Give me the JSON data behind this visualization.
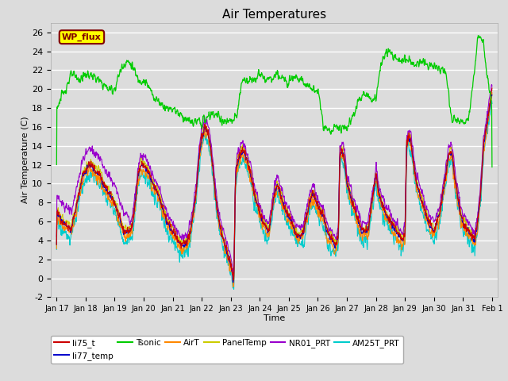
{
  "title": "Air Temperatures",
  "xlabel": "Time",
  "ylabel": "Air Temperature (C)",
  "ylim": [
    -2,
    27
  ],
  "yticks": [
    -2,
    0,
    2,
    4,
    6,
    8,
    10,
    12,
    14,
    16,
    18,
    20,
    22,
    24,
    26
  ],
  "xtick_labels": [
    "Jan 17",
    "Jan 18",
    "Jan 19",
    "Jan 20",
    "Jan 21",
    "Jan 22",
    "Jan 23",
    "Jan 24",
    "Jan 25",
    "Jan 26",
    "Jan 27",
    "Jan 28",
    "Jan 29",
    "Jan 30",
    "Jan 31",
    "Feb 1"
  ],
  "bg_color": "#dcdcdc",
  "series_colors": {
    "li75_t": "#cc0000",
    "li77_temp": "#0000cc",
    "Tsonic": "#00cc00",
    "AirT": "#ff8800",
    "PanelTemp": "#cccc00",
    "NR01_PRT": "#9900cc",
    "AM25T_PRT": "#00cccc"
  },
  "wp_flux_box_color": "#ffff00",
  "wp_flux_text_color": "#800000",
  "wp_flux_border_color": "#800000",
  "legend_order": [
    "li75_t",
    "li77_temp",
    "Tsonic",
    "AirT",
    "PanelTemp",
    "NR01_PRT",
    "AM25T_PRT"
  ]
}
